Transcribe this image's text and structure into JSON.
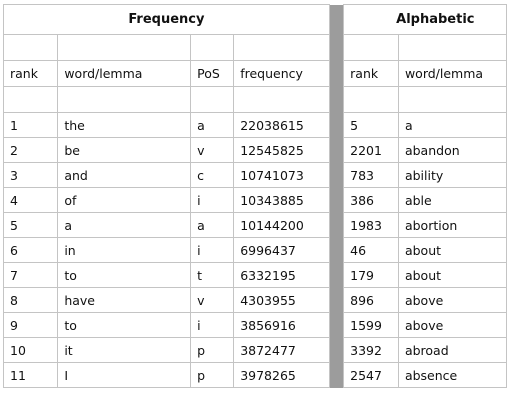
{
  "frequency": {
    "title": "Frequency",
    "headers": {
      "rank": "rank",
      "word": "word/lemma",
      "pos": "PoS",
      "freq": "frequency"
    },
    "rows": [
      {
        "rank": "1",
        "word": "the",
        "pos": "a",
        "freq": "22038615"
      },
      {
        "rank": "2",
        "word": "be",
        "pos": "v",
        "freq": "12545825"
      },
      {
        "rank": "3",
        "word": "and",
        "pos": "c",
        "freq": "10741073"
      },
      {
        "rank": "4",
        "word": "of",
        "pos": "i",
        "freq": "10343885"
      },
      {
        "rank": "5",
        "word": "a",
        "pos": "a",
        "freq": "10144200"
      },
      {
        "rank": "6",
        "word": "in",
        "pos": "i",
        "freq": "6996437"
      },
      {
        "rank": "7",
        "word": "to",
        "pos": "t",
        "freq": "6332195"
      },
      {
        "rank": "8",
        "word": "have",
        "pos": "v",
        "freq": "4303955"
      },
      {
        "rank": "9",
        "word": "to",
        "pos": "i",
        "freq": "3856916"
      },
      {
        "rank": "10",
        "word": "it",
        "pos": "p",
        "freq": "3872477"
      },
      {
        "rank": "11",
        "word": "I",
        "pos": "p",
        "freq": "3978265"
      }
    ]
  },
  "alphabetic": {
    "title": "Alphabetic",
    "headers": {
      "rank": "rank",
      "word": "word/lemma"
    },
    "rows": [
      {
        "rank": "5",
        "word": "a"
      },
      {
        "rank": "2201",
        "word": "abandon"
      },
      {
        "rank": "783",
        "word": "ability"
      },
      {
        "rank": "386",
        "word": "able"
      },
      {
        "rank": "1983",
        "word": "abortion"
      },
      {
        "rank": "46",
        "word": "about"
      },
      {
        "rank": "179",
        "word": "about"
      },
      {
        "rank": "896",
        "word": "above"
      },
      {
        "rank": "1599",
        "word": "above"
      },
      {
        "rank": "3392",
        "word": "abroad"
      },
      {
        "rank": "2547",
        "word": "absence"
      }
    ]
  }
}
